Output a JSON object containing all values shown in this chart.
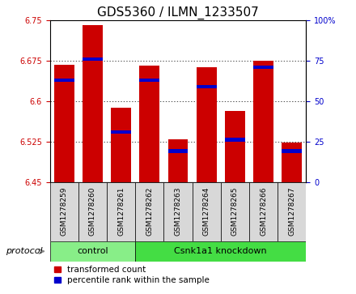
{
  "title": "GDS5360 / ILMN_1233507",
  "samples": [
    "GSM1278259",
    "GSM1278260",
    "GSM1278261",
    "GSM1278262",
    "GSM1278263",
    "GSM1278264",
    "GSM1278265",
    "GSM1278266",
    "GSM1278267"
  ],
  "transformed_count": [
    6.668,
    6.742,
    6.588,
    6.666,
    6.53,
    6.663,
    6.583,
    6.675,
    6.524
  ],
  "percentile_rank": [
    62,
    75,
    30,
    62,
    18,
    58,
    25,
    70,
    18
  ],
  "ylim": [
    6.45,
    6.75
  ],
  "ylim2": [
    0,
    100
  ],
  "yticks": [
    6.45,
    6.525,
    6.6,
    6.675,
    6.75
  ],
  "yticks2": [
    0,
    25,
    50,
    75,
    100
  ],
  "bar_bottom": 6.45,
  "bar_color": "#cc0000",
  "percentile_color": "#0000cc",
  "protocol_groups": [
    {
      "label": "control",
      "start": 0,
      "end": 3,
      "color": "#88ee88"
    },
    {
      "label": "Csnk1a1 knockdown",
      "start": 3,
      "end": 9,
      "color": "#44dd44"
    }
  ],
  "protocol_label": "protocol",
  "legend_items": [
    {
      "label": "transformed count",
      "color": "#cc0000"
    },
    {
      "label": "percentile rank within the sample",
      "color": "#0000cc"
    }
  ],
  "tick_label_color_left": "#cc0000",
  "tick_label_color_right": "#0000cc",
  "bar_width": 0.7,
  "title_fontsize": 11,
  "axis_fontsize": 7,
  "legend_fontsize": 7.5
}
